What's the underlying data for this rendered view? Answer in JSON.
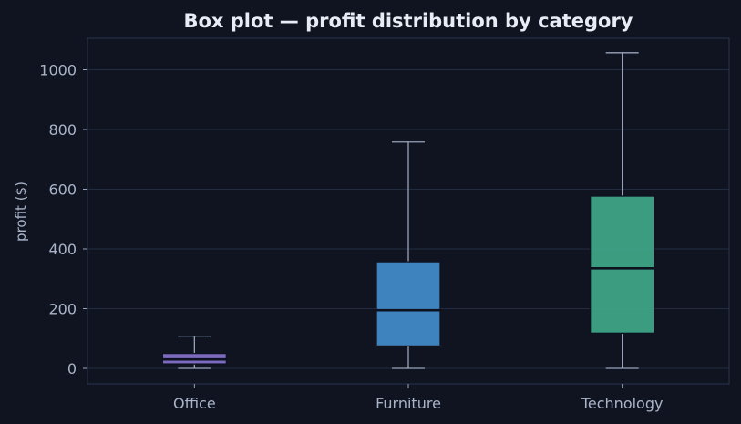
{
  "chart_data": {
    "type": "box",
    "title": "Box plot — profit distribution by category",
    "xlabel": "",
    "ylabel": "profit ($)",
    "ylim": [
      -50,
      1110
    ],
    "yticks": [
      0,
      200,
      400,
      600,
      800,
      1000
    ],
    "grid": true,
    "categories": [
      "Office",
      "Furniture",
      "Technology"
    ],
    "boxes": [
      {
        "category": "Office",
        "whisker_low": 0,
        "q1": 15,
        "median": 30,
        "q3": 50,
        "whisker_high": 108,
        "color": "#8672cf"
      },
      {
        "category": "Furniture",
        "whisker_low": 0,
        "q1": 75,
        "median": 195,
        "q3": 357,
        "whisker_high": 758,
        "color": "#438dcc"
      },
      {
        "category": "Technology",
        "whisker_low": 0,
        "q1": 118,
        "median": 335,
        "q3": 577,
        "whisker_high": 1057,
        "color": "#3fa889"
      }
    ]
  },
  "colors": {
    "background": "#0f1420",
    "grid": "#232b40",
    "axis": "#2c3550",
    "whisker": "#98a3bc",
    "median": "#0d1220"
  }
}
